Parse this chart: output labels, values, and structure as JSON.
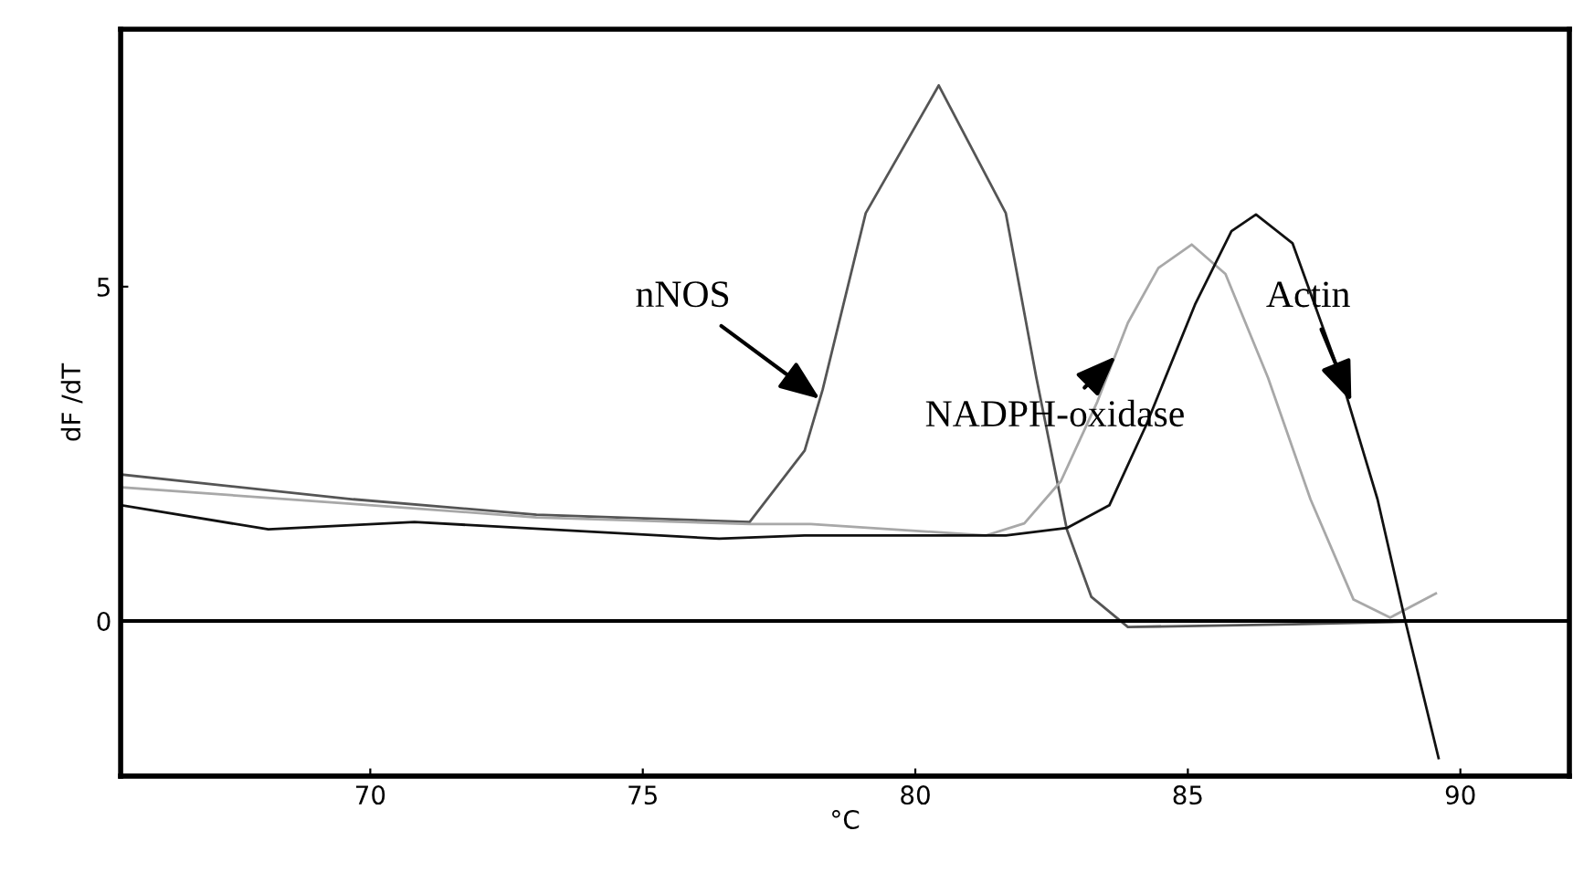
{
  "chart_data": {
    "type": "line",
    "xlabel": "°C",
    "ylabel": "dF /dT",
    "xlim": [
      65.42,
      92.0
    ],
    "ylim": [
      -2.32,
      8.85
    ],
    "xticks": [
      70,
      75,
      80,
      85,
      90
    ],
    "yticks": [
      0,
      5
    ],
    "grid": false,
    "legend": false,
    "marker": "none",
    "series": [
      {
        "color": "#555555",
        "x": [
          65.44,
          69.69,
          73.05,
          76.96,
          77.97,
          78.3,
          79.09,
          80.43,
          81.66,
          82.22,
          82.78,
          83.23,
          83.9,
          86.92,
          89.5
        ],
        "values": [
          2.19,
          1.82,
          1.59,
          1.48,
          2.55,
          3.46,
          6.1,
          8.01,
          6.1,
          3.64,
          1.37,
          0.36,
          -0.09,
          -0.05,
          0.0
        ]
      },
      {
        "color": "#a8a8a8",
        "x": [
          65.44,
          69.69,
          73.05,
          76.96,
          78.08,
          81.3,
          82.0,
          82.67,
          83.34,
          83.9,
          84.46,
          85.07,
          85.69,
          86.47,
          87.25,
          88.04,
          88.71,
          89.55
        ],
        "values": [
          2.0,
          1.75,
          1.55,
          1.45,
          1.45,
          1.28,
          1.46,
          2.09,
          3.28,
          4.46,
          5.28,
          5.63,
          5.19,
          3.64,
          1.82,
          0.32,
          0.05,
          0.41
        ]
      },
      {
        "color": "#111111",
        "x": [
          65.44,
          68.13,
          70.81,
          76.4,
          77.97,
          81.66,
          82.78,
          83.56,
          84.23,
          85.13,
          85.8,
          86.25,
          86.92,
          87.81,
          88.48,
          88.99,
          89.6
        ],
        "values": [
          1.73,
          1.37,
          1.48,
          1.23,
          1.28,
          1.28,
          1.39,
          1.73,
          2.92,
          4.73,
          5.83,
          6.08,
          5.65,
          3.64,
          1.82,
          0.0,
          -2.05
        ]
      }
    ],
    "ref_lines": [
      {
        "axis": "y",
        "value": 0,
        "color": "#000000"
      }
    ],
    "annotations": [
      {
        "text": "nNOS",
        "x": 78.25,
        "y": 3.32
      },
      {
        "text": "NADPH-oxidase",
        "x": 83.68,
        "y": 3.96
      },
      {
        "text": "Actin",
        "x": 88.0,
        "y": 3.28
      }
    ]
  }
}
